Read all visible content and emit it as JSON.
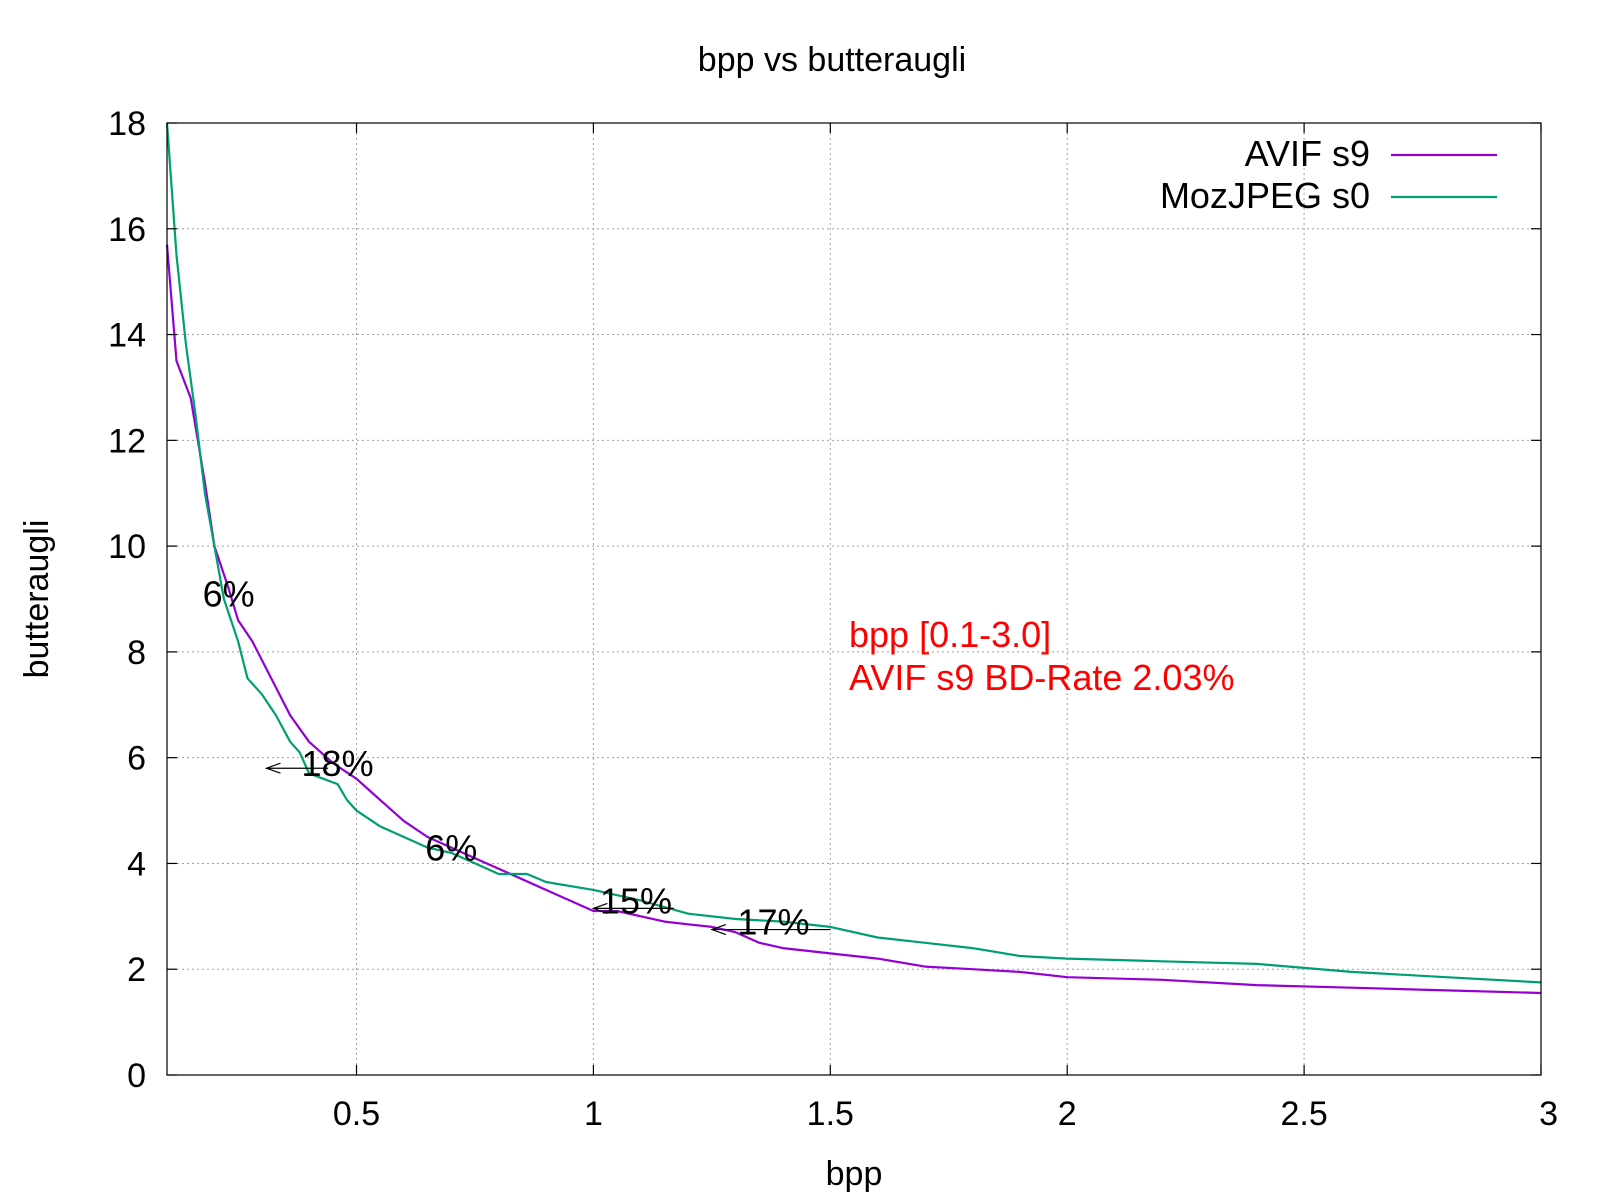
{
  "chart_data": {
    "type": "line",
    "title": "bpp vs butteraugli",
    "xlabel": "bpp",
    "ylabel": "butteraugli",
    "xlim": [
      0.1,
      3.0
    ],
    "ylim": [
      0,
      18
    ],
    "xticks": [
      0.5,
      1,
      1.5,
      2,
      2.5,
      3
    ],
    "xtick_labels": [
      "0.5",
      "1",
      "1.5",
      "2",
      "2.5",
      "3"
    ],
    "yticks": [
      0,
      2,
      4,
      6,
      8,
      10,
      12,
      14,
      16,
      18
    ],
    "ytick_labels": [
      "0",
      "2",
      "4",
      "6",
      "8",
      "10",
      "12",
      "14",
      "16",
      "18"
    ],
    "grid": true,
    "legend_position": "top-right",
    "series": [
      {
        "name": "AVIF s9",
        "color": "#9400d3",
        "x": [
          0.1,
          0.12,
          0.15,
          0.18,
          0.2,
          0.23,
          0.25,
          0.28,
          0.32,
          0.36,
          0.4,
          0.45,
          0.5,
          0.55,
          0.6,
          0.65,
          0.7,
          0.75,
          0.8,
          0.9,
          1.0,
          1.05,
          1.1,
          1.15,
          1.2,
          1.25,
          1.3,
          1.35,
          1.4,
          1.5,
          1.6,
          1.7,
          1.8,
          1.9,
          2.0,
          2.2,
          2.4,
          2.6,
          2.8,
          3.0
        ],
        "y": [
          15.7,
          13.5,
          12.8,
          11.2,
          10.0,
          9.2,
          8.6,
          8.2,
          7.5,
          6.8,
          6.3,
          5.9,
          5.6,
          5.2,
          4.8,
          4.5,
          4.3,
          4.1,
          3.9,
          3.5,
          3.1,
          3.1,
          3.0,
          2.9,
          2.85,
          2.8,
          2.7,
          2.5,
          2.4,
          2.3,
          2.2,
          2.05,
          2.0,
          1.95,
          1.85,
          1.8,
          1.7,
          1.65,
          1.6,
          1.55
        ]
      },
      {
        "name": "MozJPEG s0",
        "color": "#009e73",
        "x": [
          0.1,
          0.12,
          0.14,
          0.16,
          0.18,
          0.2,
          0.22,
          0.25,
          0.27,
          0.3,
          0.33,
          0.36,
          0.38,
          0.4,
          0.43,
          0.46,
          0.48,
          0.5,
          0.55,
          0.6,
          0.65,
          0.7,
          0.75,
          0.8,
          0.86,
          0.9,
          1.0,
          1.05,
          1.1,
          1.2,
          1.3,
          1.4,
          1.5,
          1.6,
          1.7,
          1.8,
          1.9,
          2.0,
          2.2,
          2.4,
          2.6,
          2.8,
          3.0
        ],
        "y": [
          18.0,
          15.5,
          13.8,
          12.5,
          11.0,
          10.0,
          9.0,
          8.2,
          7.5,
          7.2,
          6.8,
          6.3,
          6.1,
          5.7,
          5.6,
          5.5,
          5.2,
          5.0,
          4.7,
          4.5,
          4.3,
          4.2,
          4.0,
          3.8,
          3.8,
          3.65,
          3.5,
          3.4,
          3.3,
          3.05,
          2.95,
          2.9,
          2.8,
          2.6,
          2.5,
          2.4,
          2.25,
          2.2,
          2.15,
          2.1,
          1.95,
          1.85,
          1.75
        ]
      }
    ],
    "annotations": [
      {
        "text": "6%",
        "x": 0.23,
        "y": 9.1
      },
      {
        "text": "18%",
        "x": 0.46,
        "y": 5.9
      },
      {
        "text": "6%",
        "x": 0.7,
        "y": 4.3
      },
      {
        "text": "15%",
        "x": 1.09,
        "y": 3.3
      },
      {
        "text": "17%",
        "x": 1.38,
        "y": 2.9
      }
    ],
    "bd_rate_markers": [
      {
        "x1": 0.31,
        "x2": 0.44,
        "y": 5.8
      },
      {
        "x1": 1.0,
        "x2": 1.17,
        "y": 3.15
      },
      {
        "x1": 1.25,
        "x2": 1.5,
        "y": 2.75
      }
    ],
    "notes": [
      "bpp [0.1-3.0]",
      "AVIF s9 BD-Rate 2.03%"
    ],
    "note_color": "#ff0000"
  }
}
